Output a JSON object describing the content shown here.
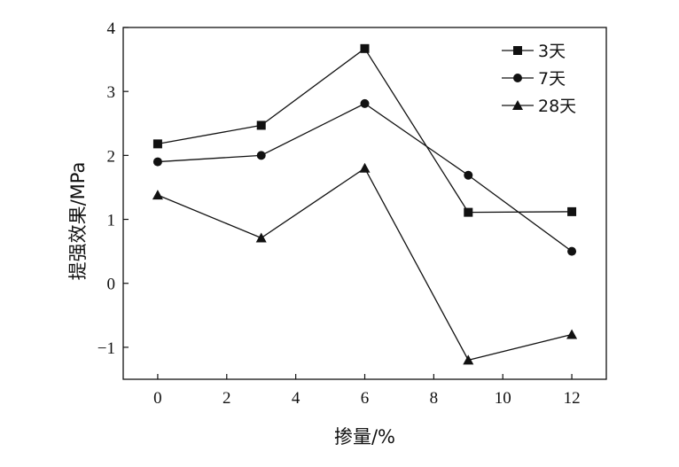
{
  "chart_data": {
    "type": "line",
    "xlabel": "掺量/%",
    "ylabel": "提强效果/MPa",
    "xlim": [
      -1,
      13
    ],
    "ylim": [
      -1.5,
      4
    ],
    "x_ticks": [
      0,
      2,
      4,
      6,
      8,
      10,
      12
    ],
    "y_ticks": [
      -1,
      0,
      1,
      2,
      3,
      4
    ],
    "y_tick_labels": [
      "−1",
      "0",
      "1",
      "2",
      "3",
      "4"
    ],
    "grid": false,
    "legend_position": "top-right",
    "x": [
      0,
      3,
      6,
      9,
      12
    ],
    "series": [
      {
        "name": "3天",
        "marker": "square",
        "values": [
          2.18,
          2.47,
          3.67,
          1.11,
          1.12
        ]
      },
      {
        "name": "7天",
        "marker": "circle",
        "values": [
          1.9,
          2.0,
          2.81,
          1.69,
          0.5
        ]
      },
      {
        "name": "28天",
        "marker": "triangle",
        "values": [
          1.38,
          0.71,
          1.8,
          -1.2,
          -0.8
        ]
      }
    ]
  }
}
